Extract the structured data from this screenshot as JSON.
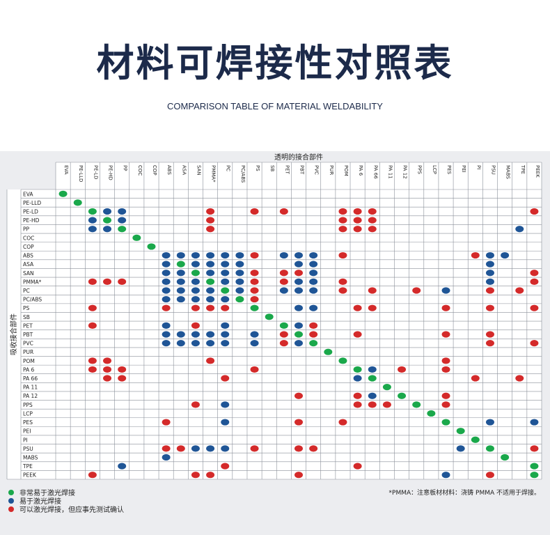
{
  "title": "材料可焊接性对照表",
  "subtitle": "COMPARISON TABLE OF MATERIAL WELDABILITY",
  "table": {
    "top_header": "透明的接合部件",
    "side_header": "吸收接合部件",
    "columns": [
      "EVA",
      "PE-LLD",
      "PE-LD",
      "PE-HD",
      "PP",
      "COC",
      "COP",
      "ABS",
      "ASA",
      "SAN",
      "PMMA*",
      "PC",
      "PC/ABS",
      "PS",
      "SB",
      "PET",
      "PBT",
      "PVC",
      "PUR",
      "POM",
      "PA 6",
      "PA 66",
      "PA 11",
      "PA 12",
      "PPS",
      "LCP",
      "PES",
      "PEI",
      "PI",
      "PSU",
      "MABS",
      "TPE",
      "PEEK"
    ],
    "rows": [
      "EVA",
      "PE-LLD",
      "PE-LD",
      "PE-HD",
      "PP",
      "COC",
      "COP",
      "ABS",
      "ASA",
      "SAN",
      "PMMA*",
      "PC",
      "PC/ABS",
      "PS",
      "SB",
      "PET",
      "PBT",
      "PVC",
      "PUR",
      "POM",
      "PA 6",
      "PA 66",
      "PA 11",
      "PA 12",
      "PPS",
      "LCP",
      "PES",
      "PEI",
      "PI",
      "PSU",
      "MABS",
      "TPE",
      "PEEK"
    ],
    "colors": {
      "g": "#1aa84b",
      "b": "#1f5596",
      "r": "#d42a2a"
    },
    "cells": [
      "g................................",
      ".g...............................",
      "..gbb.....r..r.r...rrr..........r",
      "..bgb.....r........rrr...........",
      "..bbg.....r........rrr.........b.",
      ".....g...........................",
      "......g..........................",
      ".......bbbbbbr.bbb.r........rbb..",
      ".......bgbbbb...bb...........b...",
      ".......bbgbbbr.rrb...........b..r",
      "..rrr..bbbgbbr.rbb.r.........b..r",
      ".......bbbbgbr.bbb.r.r..r.b..r.r.",
      ".......bbbbbgr...................",
      "..r....r.rrr.g..bb..rr....r..r..r",
      "..............g..................",
      "..r....b.r.b...gbr...............",
      ".......bbbbb.b.rgr..r.....r..r...",
      ".......bbbbb.b.rbg...........r..r",
      "..................g..............",
      "..rr......r........g......r......",
      "..rrr........r......gb.r..r......",
      "...rr......r........bg......r..r.",
      "......................g..........",
      "................r...rb.g..r......",
      ".........r.b........rrr.g.r......",
      ".........................g.......",
      ".......r...b....r..r......g..b..b",
      "...........................g.....",
      "............................g....",
      ".......rrbbb.r..rr.........b.g..r",
      ".......b......................g..",
      "....b......r........r...........g",
      "..r......rr.....r.........b..r..g"
    ]
  },
  "legend": [
    {
      "label": "非常易于激光焊接",
      "color": "#1aa84b"
    },
    {
      "label": "易于激光焊接",
      "color": "#1f5596"
    },
    {
      "label": "可以激光焊接，但应事先测试确认",
      "color": "#d42a2a"
    }
  ],
  "note": "*PMMA：注意板材材料：浇铸 PMMA 不适用于焊接。"
}
